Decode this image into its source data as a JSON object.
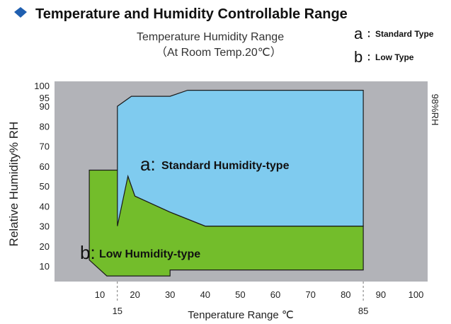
{
  "header": {
    "title": "Temperature and Humidity Controllable Range",
    "subtitle_line1": "Temperature Humidity Range",
    "subtitle_line2": "（At Room Temp.20℃）"
  },
  "legend": {
    "a_letter": "a",
    "a_label": "：Standard Type",
    "b_letter": "b",
    "b_label": "：Low Type"
  },
  "colors": {
    "plot_background": "#b2b3b8",
    "standard_region": "#7fcbef",
    "low_region": "#73bd2b",
    "outline": "#1a1a1a"
  },
  "chart_data": {
    "type": "area",
    "xlabel": "Tenperature Range ℃",
    "ylabel": "Relative Humidity% RH",
    "right_label": "98%RH",
    "xlim": [
      5,
      100
    ],
    "ylim": [
      4,
      100
    ],
    "x_ticks": [
      10,
      20,
      30,
      40,
      50,
      60,
      70,
      80,
      90,
      100
    ],
    "x_ticks_lower": [
      15,
      85
    ],
    "y_ticks": [
      10,
      20,
      30,
      40,
      50,
      60,
      70,
      80,
      90,
      95,
      100
    ],
    "series": [
      {
        "name": "a",
        "label_letter": "a:",
        "label_text": "Standard Humidity-type",
        "polygon": [
          [
            15,
            30
          ],
          [
            15,
            90
          ],
          [
            19,
            95
          ],
          [
            30,
            95
          ],
          [
            35,
            98
          ],
          [
            85,
            98
          ],
          [
            85,
            30
          ],
          [
            40,
            30
          ],
          [
            30,
            37
          ],
          [
            20,
            45
          ],
          [
            18,
            55
          ]
        ]
      },
      {
        "name": "b",
        "label_letter": "b:",
        "label_text": "Low Humidity-type",
        "polygon": [
          [
            7,
            58
          ],
          [
            7,
            13
          ],
          [
            12,
            5
          ],
          [
            30,
            5
          ],
          [
            30,
            8
          ],
          [
            85,
            8
          ],
          [
            85,
            30
          ],
          [
            40,
            30
          ],
          [
            30,
            37
          ],
          [
            20,
            45
          ],
          [
            18,
            55
          ],
          [
            15,
            58
          ]
        ]
      }
    ]
  }
}
